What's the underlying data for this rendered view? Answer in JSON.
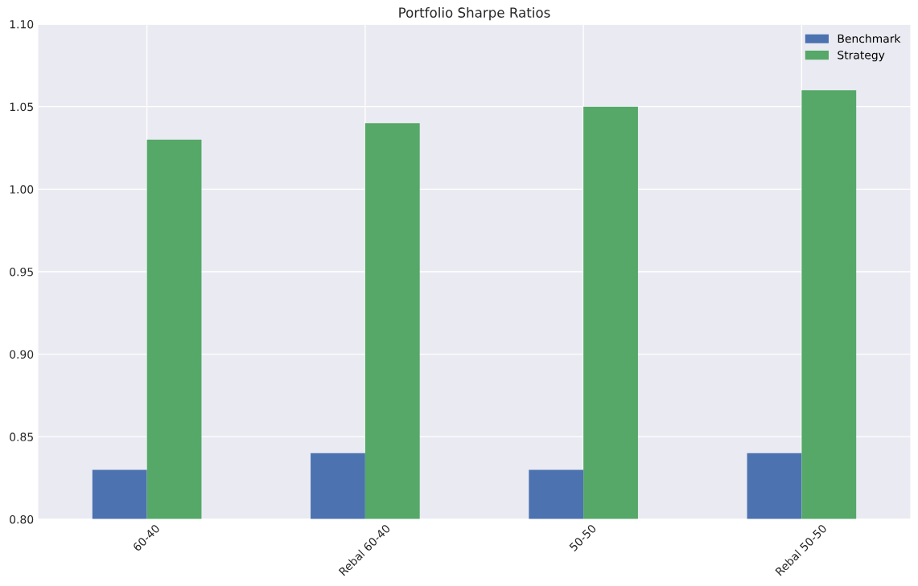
{
  "chart_data": {
    "type": "bar",
    "title": "Portfolio Sharpe Ratios",
    "categories": [
      "60-40",
      "Rebal 60-40",
      "50-50",
      "Rebal 50-50"
    ],
    "series": [
      {
        "name": "Benchmark",
        "color": "#4c72b0",
        "values": [
          0.83,
          0.84,
          0.83,
          0.84
        ]
      },
      {
        "name": "Strategy",
        "color": "#55a868",
        "values": [
          1.03,
          1.04,
          1.05,
          1.06
        ]
      }
    ],
    "ylim": [
      0.8,
      1.1
    ],
    "yticks": [
      {
        "value": 0.8,
        "label": "0.80"
      },
      {
        "value": 0.85,
        "label": "0.85"
      },
      {
        "value": 0.9,
        "label": "0.90"
      },
      {
        "value": 0.95,
        "label": "0.95"
      },
      {
        "value": 1.0,
        "label": "1.00"
      },
      {
        "value": 1.05,
        "label": "1.05"
      },
      {
        "value": 1.1,
        "label": "1.10"
      }
    ],
    "grid": true,
    "legend": "top right"
  }
}
